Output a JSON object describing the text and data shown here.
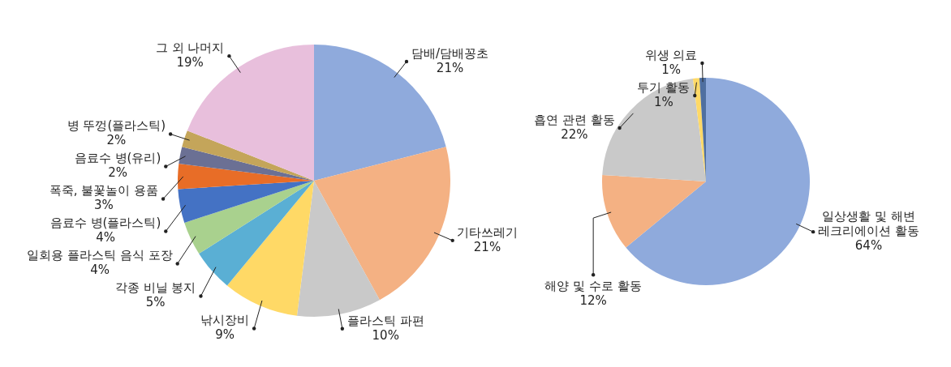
{
  "chart_data": [
    {
      "type": "pie",
      "categories": [
        "담배/담배꽁초",
        "기타쓰레기",
        "플라스틱 파편",
        "낚시장비",
        "각종 비닐 봉지",
        "일회용 플라스틱 음식 포장",
        "음료수 병(플라스틱)",
        "폭죽, 불꽃놀이 용품",
        "음료수 병(유리)",
        "병 뚜껑(플라스틱)",
        "그 외 나머지"
      ],
      "values": [
        21,
        21,
        10,
        9,
        5,
        4,
        4,
        3,
        2,
        2,
        19
      ],
      "value_labels": [
        "21%",
        "21%",
        "10%",
        "9%",
        "5%",
        "4%",
        "4%",
        "3%",
        "2%",
        "2%",
        "19%"
      ],
      "colors": [
        "#8faadc",
        "#f4b183",
        "#c9c9c9",
        "#ffd966",
        "#5aafd4",
        "#a9d18e",
        "#4472c4",
        "#e86d27",
        "#6b7094",
        "#c4a55a",
        "#e8bfdc"
      ]
    },
    {
      "type": "pie",
      "categories": [
        "일상생활 및 해변 레크리에이션 활동",
        "해양 및 수로 활동",
        "흡연 관련 활동",
        "투기 활동",
        "위생 의료"
      ],
      "values": [
        64,
        12,
        22,
        1,
        1
      ],
      "value_labels": [
        "64%",
        "12%",
        "22%",
        "1%",
        "1%"
      ],
      "colors": [
        "#8faadc",
        "#f4b183",
        "#c9c9c9",
        "#ffd966",
        "#4f6fa0"
      ]
    }
  ]
}
